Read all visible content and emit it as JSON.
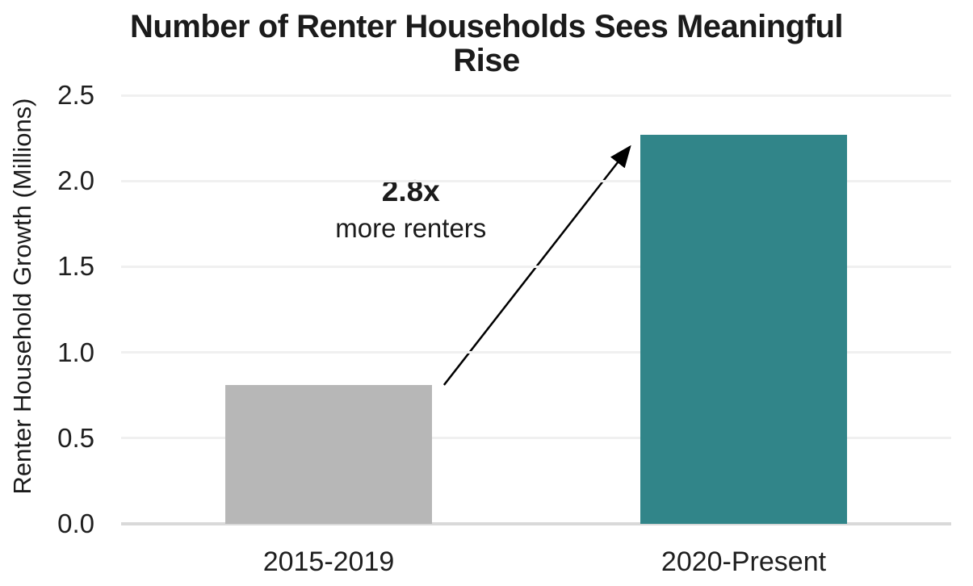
{
  "chart_data": {
    "type": "bar",
    "title": "Number of Renter Households Sees Meaningful Rise",
    "title_lines": [
      "Number of Renter Households Sees Meaningful",
      "Rise"
    ],
    "ylabel": "Renter Household Growth (Millions)",
    "xlabel": "",
    "categories": [
      "2015-2019",
      "2020-Present"
    ],
    "values": [
      0.81,
      2.27
    ],
    "bar_colors": [
      "#b7b7b7",
      "#318589"
    ],
    "ylim": [
      0,
      2.5
    ],
    "yticks": [
      0,
      0.5,
      1,
      1.5,
      2,
      2.5
    ],
    "ytick_decimals": 1,
    "grid": true,
    "legend": false,
    "background_color": "#ffffff",
    "gridline_color": "#f0f0f0",
    "baseline_color": "#d9d9d9",
    "text_color": "#1b1b1b",
    "annotation": {
      "headline": "2.8x",
      "subtext": "more renters",
      "x_fraction": 0.349,
      "y_value": 1.93
    },
    "arrow": {
      "color": "#000000",
      "from": {
        "x_fraction": 0.389,
        "y_value": 0.81
      },
      "to": {
        "x_fraction": 0.613,
        "y_value": 2.2
      }
    }
  }
}
